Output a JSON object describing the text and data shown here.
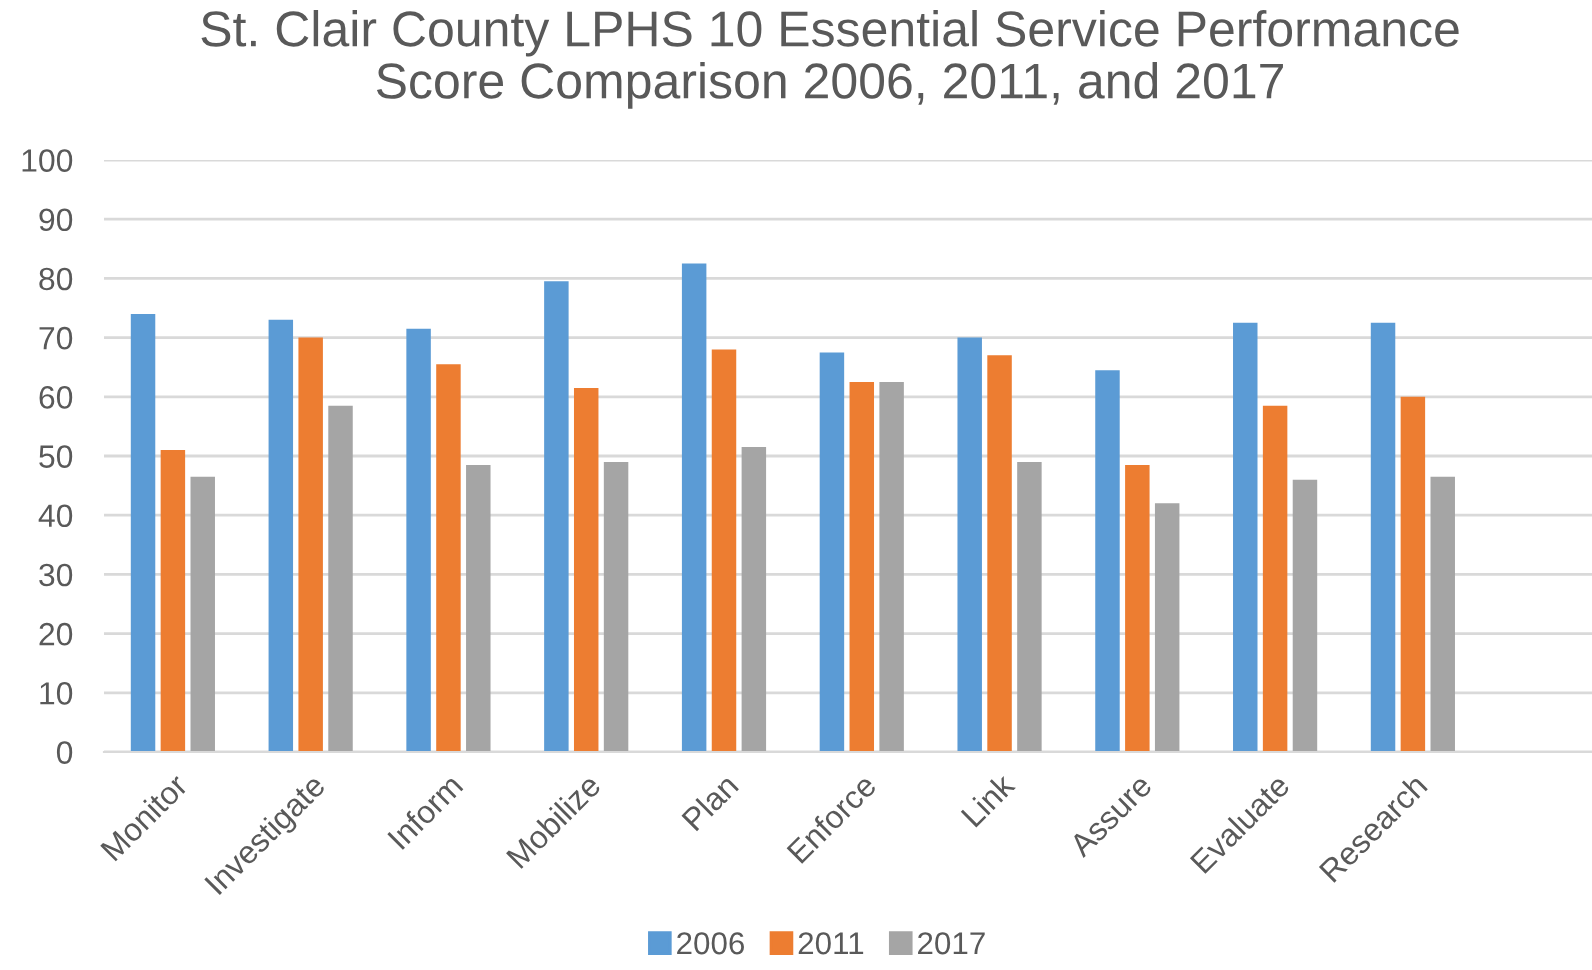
{
  "chart_data": {
    "type": "bar",
    "title": "St. Clair County LPHS 10 Essential Service Performance\nScore Comparison 2006, 2011, and 2017",
    "categories": [
      "Monitor",
      "Investigate",
      "Inform",
      "Mobilize",
      "Plan",
      "Enforce",
      "Link",
      "Assure",
      "Evaluate",
      "Research"
    ],
    "series": [
      {
        "name": "2006",
        "color": "#5b9bd5",
        "values": [
          74,
          73,
          71.5,
          79.5,
          82.5,
          67.5,
          70,
          64.5,
          72.5,
          72.5
        ]
      },
      {
        "name": "2011",
        "color": "#ed7d31",
        "values": [
          51,
          70,
          65.5,
          61.5,
          68,
          62.5,
          67,
          48.5,
          58.5,
          60
        ]
      },
      {
        "name": "2017",
        "color": "#a5a5a5",
        "values": [
          46.5,
          58.5,
          48.5,
          49,
          51.5,
          62.5,
          49,
          42,
          46,
          46.5
        ]
      }
    ],
    "ylim": [
      0,
      100
    ],
    "yticks": [
      0,
      10,
      20,
      30,
      40,
      50,
      60,
      70,
      80,
      90,
      100
    ],
    "grid": "y",
    "legend": "bottom"
  }
}
